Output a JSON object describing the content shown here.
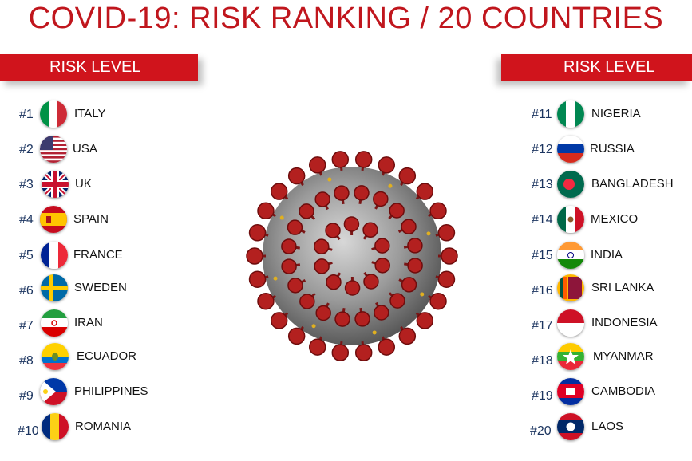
{
  "title": "COVID-19: RISK RANKING / 20 COUNTRIES",
  "left_header": "RISK LEVEL",
  "right_header": "RISK LEVEL",
  "left_list": [
    {
      "rank": "#1",
      "country": "ITALY",
      "flag_icon": "italy-flag-icon"
    },
    {
      "rank": "#2",
      "country": "USA",
      "flag_icon": "usa-flag-icon"
    },
    {
      "rank": "#3",
      "country": "UK",
      "flag_icon": "uk-flag-icon"
    },
    {
      "rank": "#4",
      "country": "SPAIN",
      "flag_icon": "spain-flag-icon"
    },
    {
      "rank": "#5",
      "country": "FRANCE",
      "flag_icon": "france-flag-icon"
    },
    {
      "rank": "#6",
      "country": "SWEDEN",
      "flag_icon": "sweden-flag-icon"
    },
    {
      "rank": "#7",
      "country": "IRAN",
      "flag_icon": "iran-flag-icon"
    },
    {
      "rank": "#8",
      "country": "ECUADOR",
      "flag_icon": "ecuador-flag-icon"
    },
    {
      "rank": "#9",
      "country": "PHILIPPINES",
      "flag_icon": "philippines-flag-icon"
    },
    {
      "rank": "#10",
      "country": "ROMANIA",
      "flag_icon": "romania-flag-icon"
    }
  ],
  "right_list": [
    {
      "rank": "#11",
      "country": "NIGERIA",
      "flag_icon": "nigeria-flag-icon"
    },
    {
      "rank": "#12",
      "country": "RUSSIA",
      "flag_icon": "russia-flag-icon"
    },
    {
      "rank": "#13",
      "country": "BANGLADESH",
      "flag_icon": "bangladesh-flag-icon"
    },
    {
      "rank": "#14",
      "country": "MEXICO",
      "flag_icon": "mexico-flag-icon"
    },
    {
      "rank": "#15",
      "country": "INDIA",
      "flag_icon": "india-flag-icon"
    },
    {
      "rank": "#16",
      "country": "SRI LANKA",
      "flag_icon": "sri-lanka-flag-icon"
    },
    {
      "rank": "#17",
      "country": "INDONESIA",
      "flag_icon": "indonesia-flag-icon"
    },
    {
      "rank": "#18",
      "country": "MYANMAR",
      "flag_icon": "myanmar-flag-icon"
    },
    {
      "rank": "#19",
      "country": "CAMBODIA",
      "flag_icon": "cambodia-flag-icon"
    },
    {
      "rank": "#20",
      "country": "LAOS",
      "flag_icon": "laos-flag-icon"
    }
  ],
  "colors": {
    "accent": "#d0141c",
    "title": "#c0161d",
    "rank": "#1c3560"
  },
  "center_image": "coronavirus-illustration"
}
